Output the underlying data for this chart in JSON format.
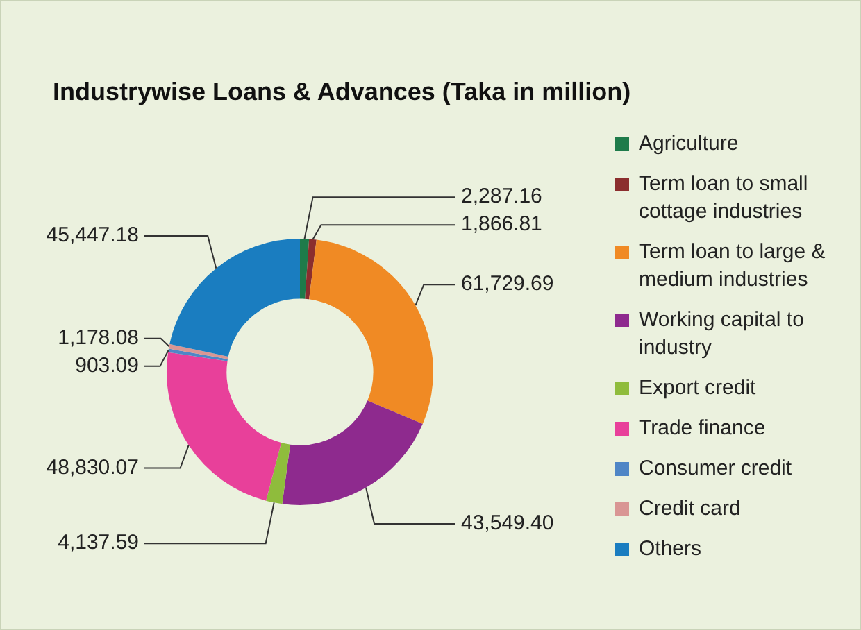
{
  "chart_data": {
    "type": "donut",
    "title": "Industrywise Loans & Advances (Taka in million)",
    "categories": [
      "Agriculture",
      "Term loan to small cottage industries",
      "Term loan to large & medium industries",
      "Working capital to industry",
      "Export credit",
      "Trade finance",
      "Consumer credit",
      "Credit card",
      "Others"
    ],
    "values": [
      2287.16,
      1866.81,
      61729.69,
      43549.4,
      4137.59,
      48830.07,
      903.09,
      1178.08,
      45447.18
    ],
    "value_labels": [
      "2,287.16",
      "1,866.81",
      "61,729.69",
      "43,549.40",
      "4,137.59",
      "48,830.07",
      "903.09",
      "1,178.08",
      "45,447.18"
    ],
    "colors": [
      "#1e7b4a",
      "#8b2e2e",
      "#f08a24",
      "#8e2a8e",
      "#8fbc3c",
      "#e8409a",
      "#4f86c6",
      "#d99694",
      "#1a7dc0"
    ],
    "legend": "right"
  }
}
